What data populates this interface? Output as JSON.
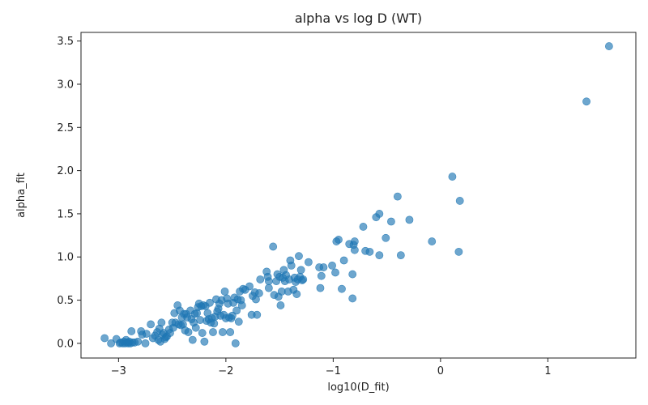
{
  "chart_data": {
    "type": "scatter",
    "title": "alpha vs log D (WT)",
    "xlabel": "log10(D_fit)",
    "ylabel": "alpha_fit",
    "xlim": [
      -3.35,
      1.82
    ],
    "ylim": [
      -0.17,
      3.6
    ],
    "xticks": [
      -3,
      -2,
      -1,
      0,
      1
    ],
    "yticks": [
      0.0,
      0.5,
      1.0,
      1.5,
      2.0,
      2.5,
      3.0,
      3.5
    ],
    "xtick_labels": [
      "−3",
      "−2",
      "−1",
      "0",
      "1"
    ],
    "ytick_labels": [
      "0.0",
      "0.5",
      "1.0",
      "1.5",
      "2.0",
      "2.5",
      "3.0",
      "3.5"
    ],
    "grid": false,
    "marker_color": "#1f77b4",
    "marker_alpha": 0.65,
    "series": [
      {
        "points": [
          [
            -3.13,
            0.06
          ],
          [
            -3.07,
            0.0
          ],
          [
            -3.02,
            0.05
          ],
          [
            -2.99,
            0.0
          ],
          [
            -2.98,
            0.01
          ],
          [
            -2.96,
            0.0
          ],
          [
            -2.95,
            0.02
          ],
          [
            -2.94,
            0.0
          ],
          [
            -2.93,
            0.04
          ],
          [
            -2.92,
            0.01
          ],
          [
            -2.91,
            0.0
          ],
          [
            -2.9,
            0.02
          ],
          [
            -2.89,
            0.0
          ],
          [
            -2.88,
            0.14
          ],
          [
            -2.87,
            0.01
          ],
          [
            -2.85,
            0.01
          ],
          [
            -2.82,
            0.02
          ],
          [
            -2.79,
            0.14
          ],
          [
            -2.78,
            0.1
          ],
          [
            -2.75,
            0.0
          ],
          [
            -2.74,
            0.11
          ],
          [
            -2.7,
            0.22
          ],
          [
            -2.68,
            0.06
          ],
          [
            -2.66,
            0.09
          ],
          [
            -2.64,
            0.13
          ],
          [
            -2.63,
            0.04
          ],
          [
            -2.62,
            0.17
          ],
          [
            -2.61,
            0.02
          ],
          [
            -2.6,
            0.24
          ],
          [
            -2.59,
            0.1
          ],
          [
            -2.58,
            0.12
          ],
          [
            -2.57,
            0.05
          ],
          [
            -2.56,
            0.07
          ],
          [
            -2.55,
            0.08
          ],
          [
            -2.53,
            0.16
          ],
          [
            -2.52,
            0.12
          ],
          [
            -2.5,
            0.24
          ],
          [
            -2.49,
            0.18
          ],
          [
            -2.48,
            0.35
          ],
          [
            -2.47,
            0.24
          ],
          [
            -2.45,
            0.44
          ],
          [
            -2.44,
            0.22
          ],
          [
            -2.43,
            0.38
          ],
          [
            -2.42,
            0.21
          ],
          [
            -2.41,
            0.3
          ],
          [
            -2.4,
            0.22
          ],
          [
            -2.39,
            0.34
          ],
          [
            -2.38,
            0.15
          ],
          [
            -2.37,
            0.34
          ],
          [
            -2.36,
            0.3
          ],
          [
            -2.35,
            0.13
          ],
          [
            -2.33,
            0.38
          ],
          [
            -2.32,
            0.28
          ],
          [
            -2.31,
            0.04
          ],
          [
            -2.3,
            0.24
          ],
          [
            -2.29,
            0.34
          ],
          [
            -2.28,
            0.18
          ],
          [
            -2.27,
            0.35
          ],
          [
            -2.26,
            0.42
          ],
          [
            -2.25,
            0.46
          ],
          [
            -2.24,
            0.27
          ],
          [
            -2.23,
            0.43
          ],
          [
            -2.22,
            0.12
          ],
          [
            -2.21,
            0.44
          ],
          [
            -2.2,
            0.02
          ],
          [
            -2.19,
            0.43
          ],
          [
            -2.18,
            0.26
          ],
          [
            -2.17,
            0.35
          ],
          [
            -2.16,
            0.28
          ],
          [
            -2.15,
            0.47
          ],
          [
            -2.14,
            0.24
          ],
          [
            -2.13,
            0.29
          ],
          [
            -2.12,
            0.13
          ],
          [
            -2.11,
            0.23
          ],
          [
            -2.1,
            0.31
          ],
          [
            -2.09,
            0.51
          ],
          [
            -2.08,
            0.37
          ],
          [
            -2.07,
            0.4
          ],
          [
            -2.06,
            0.46
          ],
          [
            -2.05,
            0.32
          ],
          [
            -2.04,
            0.5
          ],
          [
            -2.03,
            0.13
          ],
          [
            -2.02,
            0.33
          ],
          [
            -2.01,
            0.6
          ],
          [
            -2.0,
            0.29
          ],
          [
            -1.99,
            0.52
          ],
          [
            -1.98,
            0.46
          ],
          [
            -1.97,
            0.3
          ],
          [
            -1.96,
            0.13
          ],
          [
            -1.95,
            0.29
          ],
          [
            -1.94,
            0.32
          ],
          [
            -1.93,
            0.47
          ],
          [
            -1.92,
            0.53
          ],
          [
            -1.91,
            0.0
          ],
          [
            -1.9,
            0.38
          ],
          [
            -1.89,
            0.51
          ],
          [
            -1.88,
            0.25
          ],
          [
            -1.87,
            0.6
          ],
          [
            -1.86,
            0.5
          ],
          [
            -1.85,
            0.44
          ],
          [
            -1.84,
            0.63
          ],
          [
            -1.82,
            0.62
          ],
          [
            -1.78,
            0.66
          ],
          [
            -1.76,
            0.33
          ],
          [
            -1.75,
            0.55
          ],
          [
            -1.73,
            0.59
          ],
          [
            -1.72,
            0.51
          ],
          [
            -1.71,
            0.33
          ],
          [
            -1.69,
            0.58
          ],
          [
            -1.68,
            0.74
          ],
          [
            -1.62,
            0.83
          ],
          [
            -1.61,
            0.77
          ],
          [
            -1.6,
            0.72
          ],
          [
            -1.6,
            0.64
          ],
          [
            -1.56,
            1.12
          ],
          [
            -1.55,
            0.56
          ],
          [
            -1.53,
            0.72
          ],
          [
            -1.52,
            0.8
          ],
          [
            -1.51,
            0.54
          ],
          [
            -1.5,
            0.77
          ],
          [
            -1.49,
            0.44
          ],
          [
            -1.48,
            0.6
          ],
          [
            -1.47,
            0.76
          ],
          [
            -1.46,
            0.85
          ],
          [
            -1.45,
            0.72
          ],
          [
            -1.44,
            0.79
          ],
          [
            -1.42,
            0.6
          ],
          [
            -1.41,
            0.74
          ],
          [
            -1.4,
            0.96
          ],
          [
            -1.39,
            0.9
          ],
          [
            -1.37,
            0.62
          ],
          [
            -1.36,
            0.76
          ],
          [
            -1.35,
            0.71
          ],
          [
            -1.34,
            0.57
          ],
          [
            -1.33,
            0.74
          ],
          [
            -1.32,
            1.01
          ],
          [
            -1.31,
            0.77
          ],
          [
            -1.3,
            0.85
          ],
          [
            -1.29,
            0.73
          ],
          [
            -1.28,
            0.74
          ],
          [
            -1.23,
            0.94
          ],
          [
            -1.13,
            0.88
          ],
          [
            -1.12,
            0.64
          ],
          [
            -1.11,
            0.78
          ],
          [
            -1.09,
            0.88
          ],
          [
            -1.01,
            0.9
          ],
          [
            -0.98,
            0.82
          ],
          [
            -0.97,
            1.18
          ],
          [
            -0.95,
            1.2
          ],
          [
            -0.92,
            0.63
          ],
          [
            -0.9,
            0.96
          ],
          [
            -0.85,
            1.15
          ],
          [
            -0.82,
            0.8
          ],
          [
            -0.82,
            0.52
          ],
          [
            -0.81,
            1.14
          ],
          [
            -0.8,
            1.08
          ],
          [
            -0.8,
            1.18
          ],
          [
            -0.72,
            1.35
          ],
          [
            -0.7,
            1.07
          ],
          [
            -0.66,
            1.06
          ],
          [
            -0.6,
            1.46
          ],
          [
            -0.57,
            1.5
          ],
          [
            -0.57,
            1.02
          ],
          [
            -0.51,
            1.22
          ],
          [
            -0.46,
            1.41
          ],
          [
            -0.4,
            1.7
          ],
          [
            -0.37,
            1.02
          ],
          [
            -0.29,
            1.43
          ],
          [
            -0.08,
            1.18
          ],
          [
            0.11,
            1.93
          ],
          [
            0.17,
            1.06
          ],
          [
            0.18,
            1.65
          ],
          [
            1.36,
            2.8
          ],
          [
            1.57,
            3.44
          ]
        ]
      }
    ]
  }
}
